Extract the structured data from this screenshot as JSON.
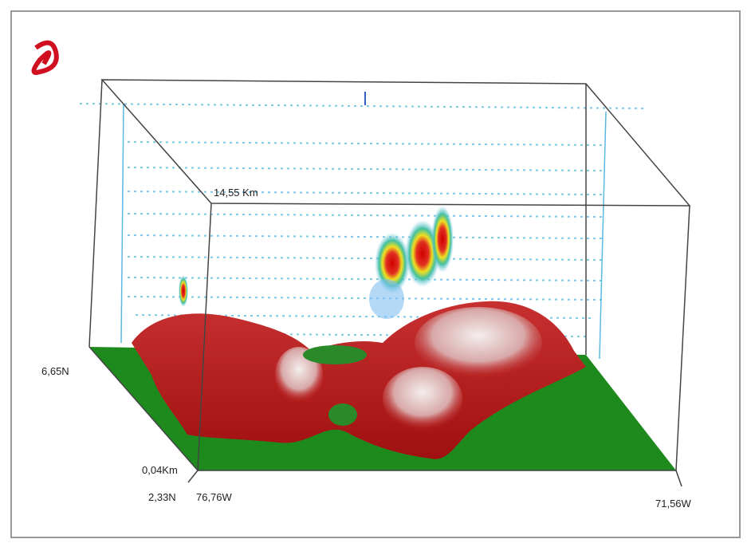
{
  "figure": {
    "labels": {
      "top_height": "14,55 Km",
      "north_lat": "6,65N",
      "bottom_height": "0,04Km",
      "south_lat": "2,33N",
      "west_lon": "76,76W",
      "east_lon": "71,56W"
    }
  }
}
